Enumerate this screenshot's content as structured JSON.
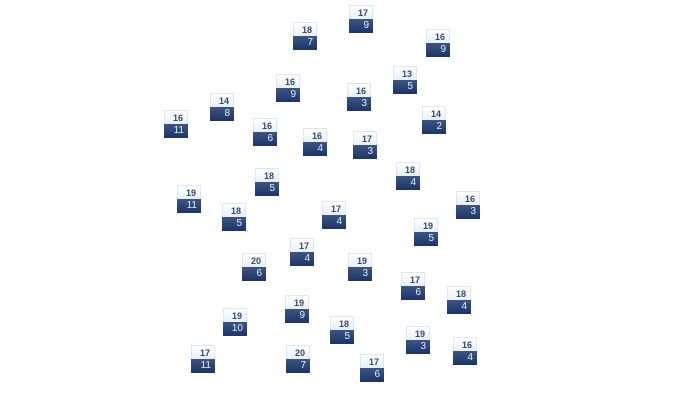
{
  "nodes": [
    {
      "top": "17",
      "bottom": "9"
    },
    {
      "top": "18",
      "bottom": "7"
    },
    {
      "top": "16",
      "bottom": "9"
    },
    {
      "top": "16",
      "bottom": "9"
    },
    {
      "top": "13",
      "bottom": "5"
    },
    {
      "top": "16",
      "bottom": "3"
    },
    {
      "top": "14",
      "bottom": "8"
    },
    {
      "top": "16",
      "bottom": "11"
    },
    {
      "top": "14",
      "bottom": "2"
    },
    {
      "top": "16",
      "bottom": "6"
    },
    {
      "top": "16",
      "bottom": "4"
    },
    {
      "top": "17",
      "bottom": "3"
    },
    {
      "top": "18",
      "bottom": "5"
    },
    {
      "top": "18",
      "bottom": "4"
    },
    {
      "top": "19",
      "bottom": "11"
    },
    {
      "top": "18",
      "bottom": "5"
    },
    {
      "top": "17",
      "bottom": "4"
    },
    {
      "top": "16",
      "bottom": "3"
    },
    {
      "top": "19",
      "bottom": "5"
    },
    {
      "top": "17",
      "bottom": "4"
    },
    {
      "top": "20",
      "bottom": "6"
    },
    {
      "top": "19",
      "bottom": "3"
    },
    {
      "top": "17",
      "bottom": "6"
    },
    {
      "top": "18",
      "bottom": "4"
    },
    {
      "top": "19",
      "bottom": "9"
    },
    {
      "top": "19",
      "bottom": "10"
    },
    {
      "top": "18",
      "bottom": "5"
    },
    {
      "top": "19",
      "bottom": "3"
    },
    {
      "top": "16",
      "bottom": "4"
    },
    {
      "top": "17",
      "bottom": "11"
    },
    {
      "top": "20",
      "bottom": "7"
    },
    {
      "top": "17",
      "bottom": "6"
    }
  ],
  "colors": {
    "header_text": "#2f4a7a",
    "body_bg": "#1c3566",
    "body_text": "#e6ecf6"
  }
}
